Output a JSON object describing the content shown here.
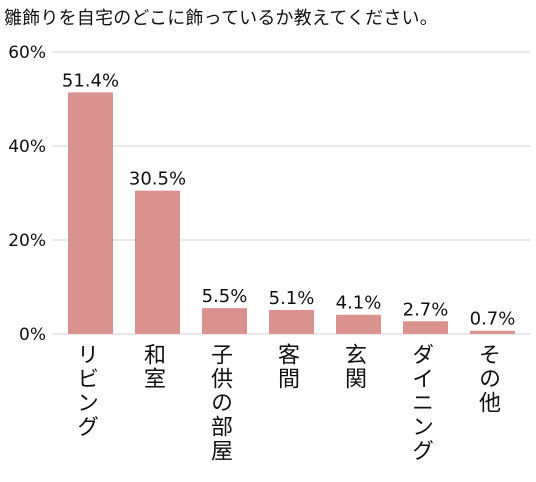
{
  "chart_data": {
    "type": "bar",
    "title": "雛飾りを自宅のどこに飾っているか教えてください。",
    "categories": [
      "リビング",
      "和室",
      "子供の部屋",
      "客間",
      "玄関",
      "ダイニング",
      "その他"
    ],
    "values": [
      51.4,
      30.5,
      5.5,
      5.1,
      4.1,
      2.7,
      0.7
    ],
    "data_labels": [
      "51.4%",
      "30.5%",
      "5.5%",
      "5.1%",
      "4.1%",
      "2.7%",
      "0.7%"
    ],
    "y_ticks": [
      "0%",
      "20%",
      "40%",
      "60%"
    ],
    "y_tick_values": [
      0,
      20,
      40,
      60
    ],
    "ylim": [
      0,
      60
    ],
    "xlabel": "",
    "ylabel": "",
    "grid": true,
    "legend": "none",
    "colors": {
      "bar": "#d9928d",
      "grid": "#d0d0d0",
      "text": "#111111"
    }
  }
}
